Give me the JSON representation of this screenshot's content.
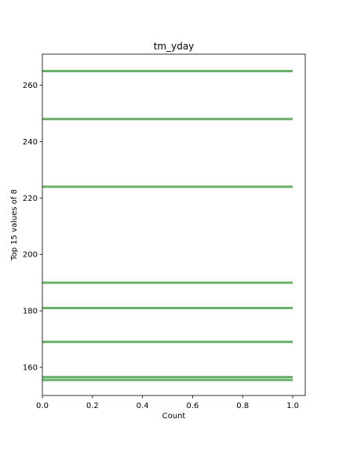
{
  "chart_data": {
    "type": "bar",
    "orientation": "horizontal",
    "title": "tm_yday",
    "xlabel": "Count",
    "ylabel": "Top 15 values of 8",
    "xlim": [
      0,
      1.05
    ],
    "ylim": [
      150,
      271
    ],
    "x_ticks": [
      0.0,
      0.2,
      0.4,
      0.6,
      0.8,
      1.0
    ],
    "x_tick_labels": [
      "0.0",
      "0.2",
      "0.4",
      "0.6",
      "0.8",
      "1.0"
    ],
    "y_ticks": [
      160,
      180,
      200,
      220,
      240,
      260
    ],
    "y_tick_labels": [
      "160",
      "180",
      "200",
      "220",
      "240",
      "260"
    ],
    "bar_color": "#6ab06a",
    "grid": false,
    "legend": "none",
    "bars": [
      {
        "y": 155.5,
        "value": 1
      },
      {
        "y": 156.5,
        "value": 1
      },
      {
        "y": 169,
        "value": 1
      },
      {
        "y": 181,
        "value": 1
      },
      {
        "y": 190,
        "value": 1
      },
      {
        "y": 224,
        "value": 1
      },
      {
        "y": 248,
        "value": 1
      },
      {
        "y": 265,
        "value": 1
      }
    ]
  }
}
